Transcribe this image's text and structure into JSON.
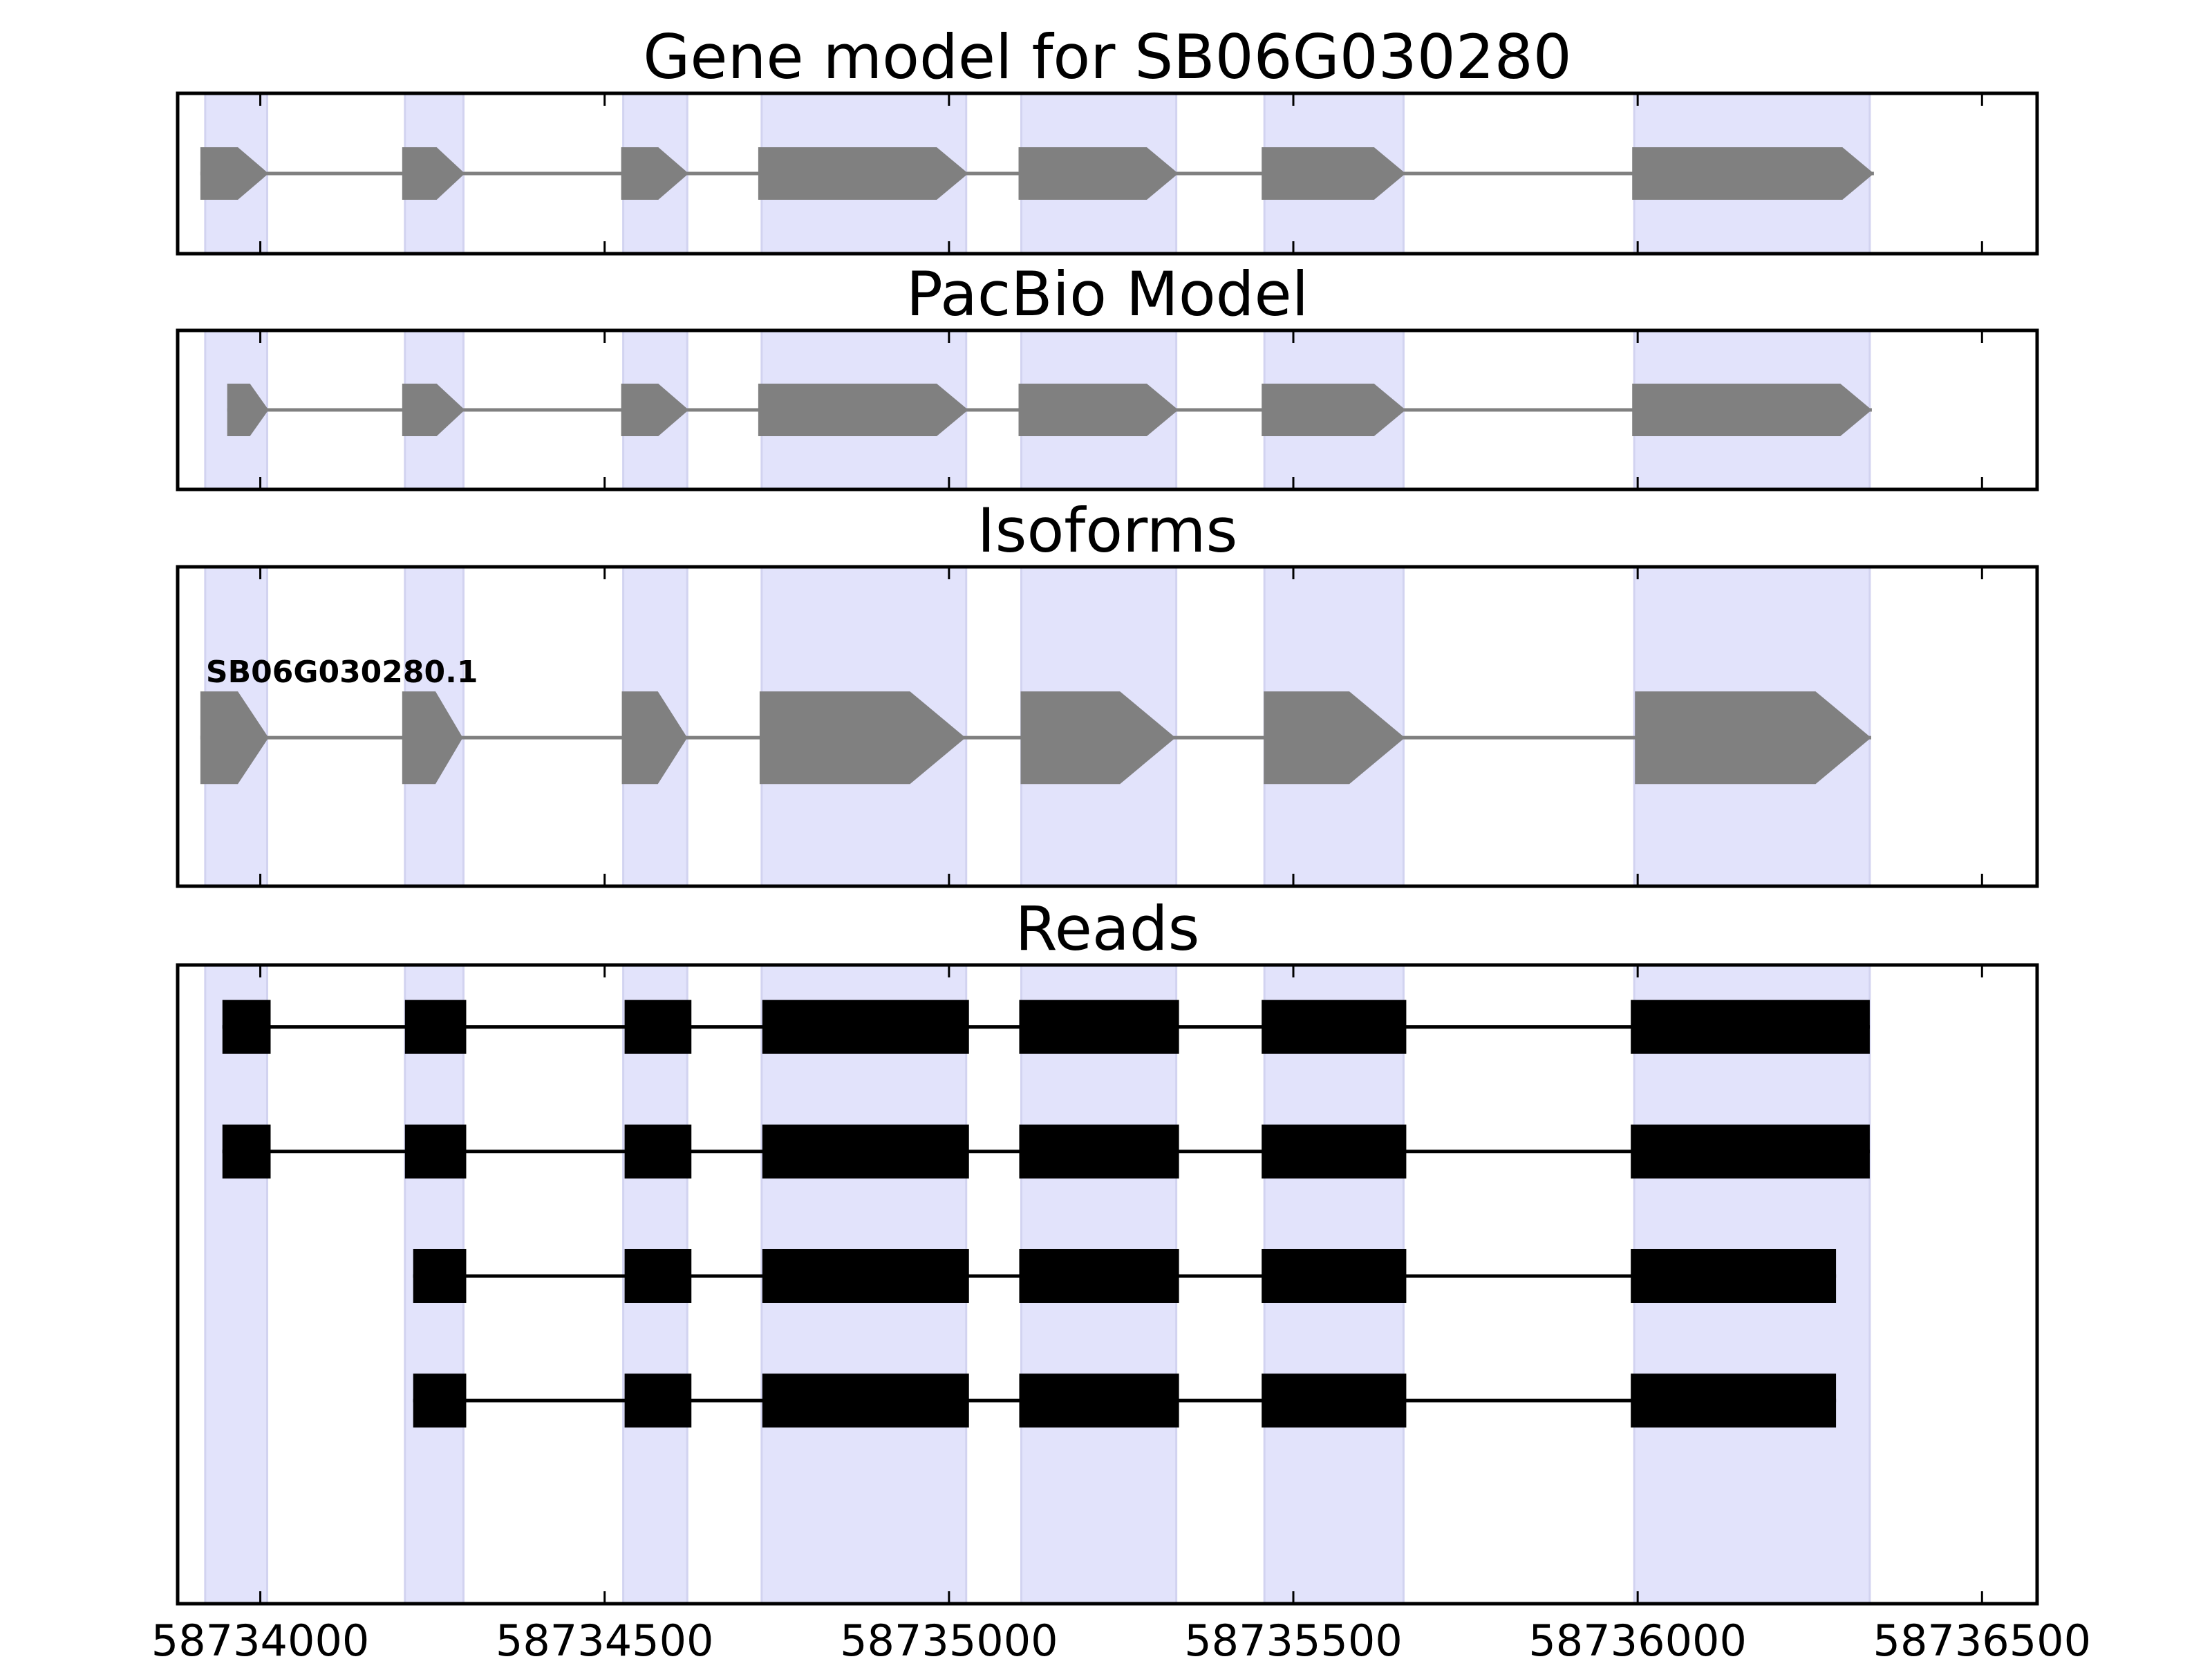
{
  "chart_data": {
    "type": "gene-track",
    "x_axis": {
      "xlim": [
        58733880,
        58736580
      ],
      "ticks": [
        58734000,
        58734500,
        58735000,
        58735500,
        58736000,
        58736500
      ],
      "tick_labels": [
        "58734000",
        "58734500",
        "58735000",
        "58735500",
        "58736000",
        "58736500"
      ]
    },
    "highlight_color": "#e2e3fb",
    "exon_highlights": [
      [
        58733920,
        58734010
      ],
      [
        58734210,
        58734295
      ],
      [
        58734527,
        58734620
      ],
      [
        58734728,
        58735025
      ],
      [
        58735105,
        58735330
      ],
      [
        58735458,
        58735660
      ],
      [
        58735995,
        58736337
      ]
    ],
    "panels": [
      {
        "title": "Gene model for SB06G030280",
        "kind": "gene",
        "color": "#808080",
        "exons": [
          [
            58733913,
            58734012
          ],
          [
            58734206,
            58734297
          ],
          [
            58734524,
            58734622
          ],
          [
            58734723,
            58735028
          ],
          [
            58735101,
            58735333
          ],
          [
            58735454,
            58735663
          ],
          [
            58735992,
            58736343
          ]
        ]
      },
      {
        "title": "PacBio Model",
        "kind": "gene",
        "color": "#808080",
        "exons": [
          [
            58733952,
            58734012
          ],
          [
            58734206,
            58734297
          ],
          [
            58734524,
            58734622
          ],
          [
            58734723,
            58735028
          ],
          [
            58735101,
            58735333
          ],
          [
            58735454,
            58735663
          ],
          [
            58735992,
            58736340
          ]
        ]
      },
      {
        "title": "Isoforms",
        "kind": "isoform",
        "color": "#808080",
        "isoforms": [
          {
            "label": "SB06G030280.1",
            "exons": [
              [
                58733913,
                58734012
              ],
              [
                58734206,
                58734294
              ],
              [
                58734525,
                58734620
              ],
              [
                58734725,
                58735024
              ],
              [
                58735104,
                58735329
              ],
              [
                58735457,
                58735662
              ],
              [
                58735996,
                58736339
              ]
            ]
          }
        ]
      },
      {
        "title": "Reads",
        "kind": "reads",
        "color": "#000000",
        "reads": [
          {
            "exons": [
              [
                58733945,
                58734015
              ],
              [
                58734210,
                58734299
              ],
              [
                58734529,
                58734626
              ],
              [
                58734729,
                58735029
              ],
              [
                58735102,
                58735334
              ],
              [
                58735454,
                58735664
              ],
              [
                58735990,
                58736337
              ]
            ]
          },
          {
            "exons": [
              [
                58733945,
                58734015
              ],
              [
                58734210,
                58734299
              ],
              [
                58734529,
                58734626
              ],
              [
                58734729,
                58735029
              ],
              [
                58735102,
                58735334
              ],
              [
                58735454,
                58735664
              ],
              [
                58735990,
                58736337
              ]
            ]
          },
          {
            "exons": [
              [
                58734222,
                58734299
              ],
              [
                58734529,
                58734626
              ],
              [
                58734729,
                58735029
              ],
              [
                58735102,
                58735334
              ],
              [
                58735454,
                58735664
              ],
              [
                58735990,
                58736288
              ]
            ]
          },
          {
            "exons": [
              [
                58734222,
                58734299
              ],
              [
                58734529,
                58734626
              ],
              [
                58734729,
                58735029
              ],
              [
                58735102,
                58735334
              ],
              [
                58735454,
                58735664
              ],
              [
                58735990,
                58736288
              ]
            ]
          }
        ]
      }
    ]
  }
}
